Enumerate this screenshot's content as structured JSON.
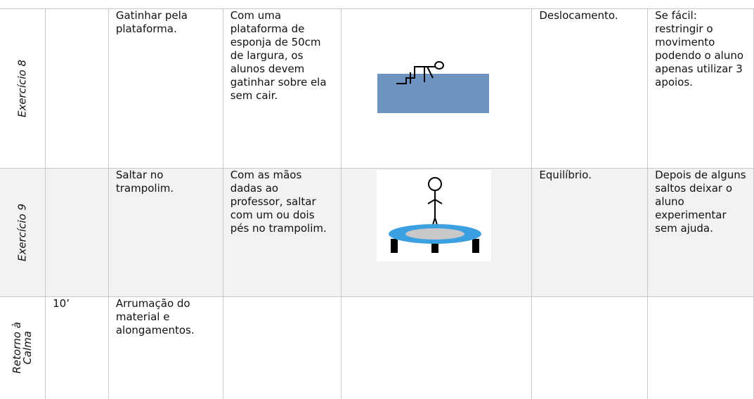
{
  "table": {
    "rows": [
      {
        "label": "Exercício 8",
        "activity": "Gatinhar pela plataforma.",
        "description": "Com uma plataforma de esponja de 50cm de largura, os alunos devem gatinhar sobre ela sem cair.",
        "objective": "Deslocamento.",
        "variant": "Se fácil: restringir o movimento podendo o aluno apenas utilizar 3 apoios."
      },
      {
        "label": "Exercício 9",
        "activity": "Saltar no trampolim.",
        "description": "Com as mãos dadas ao professor, saltar com um ou dois pés no trampolim.",
        "objective": "Equilíbrio.",
        "variant": "Depois de alguns saltos deixar o aluno experimentar sem ajuda."
      },
      {
        "label": "Retorno à Calma",
        "time": "10’",
        "activity": "Arrumação do material e alongamentos."
      }
    ]
  }
}
